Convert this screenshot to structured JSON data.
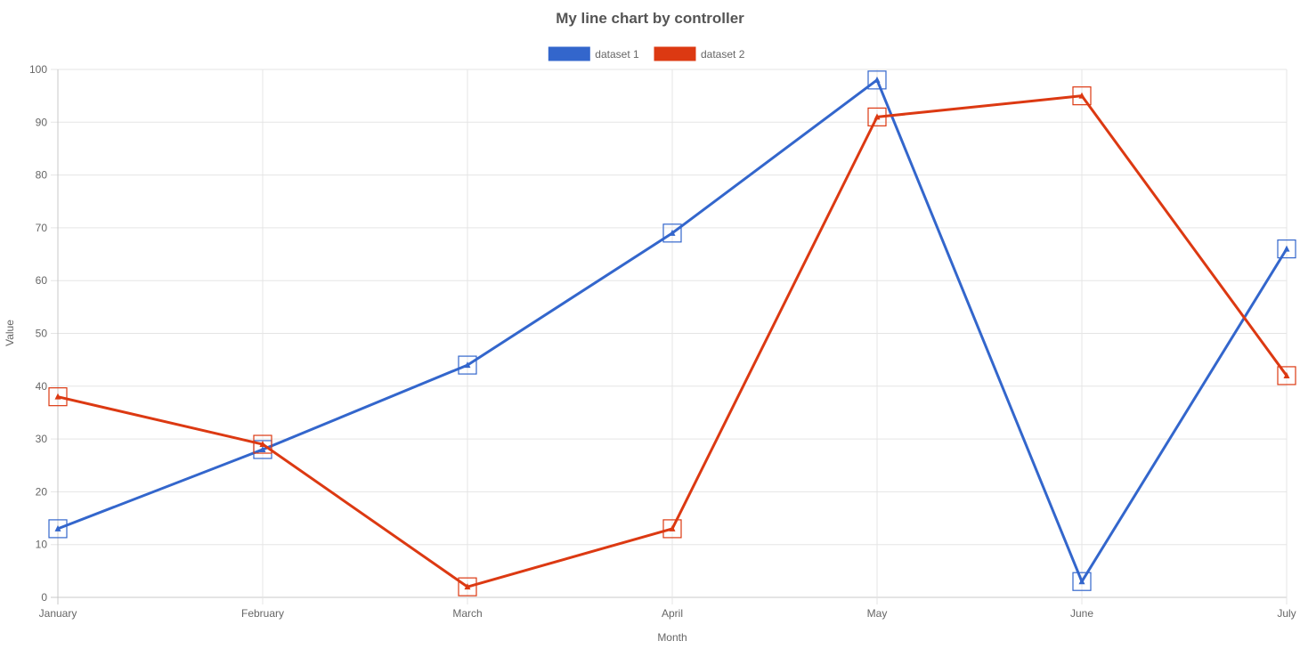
{
  "chart_data": {
    "type": "line",
    "title": "My line chart by controller",
    "xlabel": "Month",
    "ylabel": "Value",
    "categories": [
      "January",
      "February",
      "March",
      "April",
      "May",
      "June",
      "July"
    ],
    "ylim": [
      0,
      100
    ],
    "yticks": [
      0,
      10,
      20,
      30,
      40,
      50,
      60,
      70,
      80,
      90,
      100
    ],
    "grid": true,
    "legend_position": "top",
    "series": [
      {
        "name": "dataset 1",
        "color": "#3366CC",
        "values": [
          13,
          28,
          44,
          69,
          98,
          3,
          66
        ]
      },
      {
        "name": "dataset 2",
        "color": "#DC3912",
        "values": [
          38,
          29,
          2,
          13,
          91,
          95,
          42
        ]
      }
    ]
  }
}
